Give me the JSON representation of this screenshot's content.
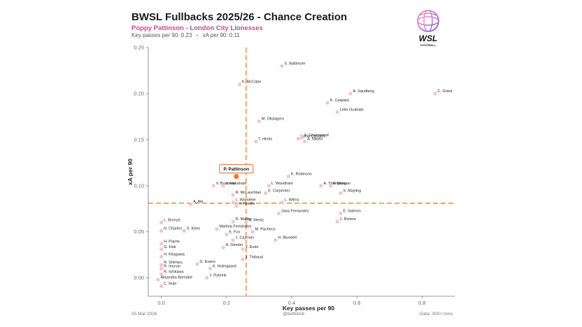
{
  "header": {
    "title": "BWSL Fullbacks 2025/26 - Chance Creation",
    "subtitle": "Poppy Pattinson - London City Lionesses",
    "kp_label": "Key passes per 90: 0.23",
    "xa_label": "xA per 90: 0.11",
    "separator": "•"
  },
  "logo": {
    "text": "WSL",
    "subtext": "FOOTBALL"
  },
  "footer": {
    "date": "05 Mar 2026",
    "handle": "@bethlimb",
    "note": "Data: 300+ mins"
  },
  "colors": {
    "accent": "#f07a2a",
    "point": "#f2c4d2",
    "highlight_border": "#e8651a",
    "text": "#222222",
    "axis": "#666666"
  },
  "chart_data": {
    "type": "scatter",
    "xlabel": "Key passes per 90",
    "ylabel": "xA per 90",
    "xlim": [
      -0.04,
      0.9
    ],
    "ylim": [
      -0.02,
      0.25
    ],
    "xticks": [
      0.0,
      0.2,
      0.4,
      0.6,
      0.8
    ],
    "yticks": [
      0.0,
      0.05,
      0.1,
      0.15,
      0.2,
      0.25
    ],
    "xtick_labels": [
      "0.0",
      "0.2",
      "0.4",
      "0.6",
      "0.8"
    ],
    "ytick_labels": [
      "0.00",
      "0.05",
      "0.10",
      "0.15",
      "0.20",
      "0.25"
    ],
    "mean_x": 0.26,
    "mean_y": 0.081,
    "highlight": {
      "name": "P. Pattinson",
      "x": 0.23,
      "y": 0.11
    },
    "points": [
      {
        "name": "S. Baltimore",
        "x": 0.37,
        "y": 0.23
      },
      {
        "name": "K. McCabe",
        "x": 0.24,
        "y": 0.21
      },
      {
        "name": "A. Sandberg",
        "x": 0.58,
        "y": 0.2
      },
      {
        "name": "C. Grant",
        "x": 0.84,
        "y": 0.2
      },
      {
        "name": "K. Casparij",
        "x": 0.51,
        "y": 0.19
      },
      {
        "name": "Leila Ouahabi",
        "x": 0.54,
        "y": 0.18
      },
      {
        "name": "M. Olislagers",
        "x": 0.3,
        "y": 0.17
      },
      {
        "name": "Lucia Corrales",
        "x": 0.42,
        "y": 0.151
      },
      {
        "name": "A. Greenwood",
        "x": 0.43,
        "y": 0.152
      },
      {
        "name": "A. Nildén",
        "x": 0.44,
        "y": 0.148
      },
      {
        "name": "T. Hinds",
        "x": 0.29,
        "y": 0.148
      },
      {
        "name": "K. Robinson",
        "x": 0.39,
        "y": 0.11
      },
      {
        "name": "V. Buurman",
        "x": 0.16,
        "y": 0.1
      },
      {
        "name": "V. Hanshaw",
        "x": 0.19,
        "y": 0.1
      },
      {
        "name": "L. Woodham",
        "x": 0.33,
        "y": 0.1
      },
      {
        "name": "A. Thompson",
        "x": 0.49,
        "y": 0.1
      },
      {
        "name": "F. Morgan",
        "x": 0.52,
        "y": 0.1
      },
      {
        "name": "S. Mayling",
        "x": 0.55,
        "y": 0.092
      },
      {
        "name": "R. McLauchlan",
        "x": 0.22,
        "y": 0.09
      },
      {
        "name": "E. Carpenter",
        "x": 0.32,
        "y": 0.092
      },
      {
        "name": "L. Wandeler",
        "x": 0.22,
        "y": 0.082
      },
      {
        "name": "L. Wilms",
        "x": 0.37,
        "y": 0.082
      },
      {
        "name": "A. Ale",
        "x": 0.09,
        "y": 0.08
      },
      {
        "name": "A. Neville",
        "x": 0.23,
        "y": 0.078
      },
      {
        "name": "Jana Fernandez",
        "x": 0.36,
        "y": 0.07
      },
      {
        "name": "E. Salmon",
        "x": 0.55,
        "y": 0.07
      },
      {
        "name": "R. Maltby",
        "x": 0.22,
        "y": 0.061
      },
      {
        "name": "N. Mentz",
        "x": 0.26,
        "y": 0.06
      },
      {
        "name": "J. Riviere",
        "x": 0.54,
        "y": 0.061
      },
      {
        "name": "L. Bronze",
        "x": 0.0,
        "y": 0.06
      },
      {
        "name": "N. Charles",
        "x": 0.0,
        "y": 0.051
      },
      {
        "name": "S. Kees",
        "x": 0.07,
        "y": 0.051
      },
      {
        "name": "Martina Fernández",
        "x": 0.17,
        "y": 0.053
      },
      {
        "name": "M. Pacheco",
        "x": 0.28,
        "y": 0.05
      },
      {
        "name": "E. Fox",
        "x": 0.2,
        "y": 0.047
      },
      {
        "name": "H. Blundell",
        "x": 0.35,
        "y": 0.041
      },
      {
        "name": "J. Cayman",
        "x": 0.22,
        "y": 0.041
      },
      {
        "name": "H. Payne",
        "x": 0.0,
        "y": 0.037
      },
      {
        "name": "A. Denton",
        "x": 0.19,
        "y": 0.033
      },
      {
        "name": "G. Fisk",
        "x": 0.0,
        "y": 0.031
      },
      {
        "name": "Y. Endo",
        "x": 0.25,
        "y": 0.031
      },
      {
        "name": "H. Kitagawa",
        "x": 0.0,
        "y": 0.023
      },
      {
        "name": "J. Thibaud",
        "x": 0.25,
        "y": 0.02
      },
      {
        "name": "R. Shimizu",
        "x": 0.0,
        "y": 0.014
      },
      {
        "name": "G. Evans",
        "x": 0.11,
        "y": 0.015
      },
      {
        "name": "R. Imuran",
        "x": 0.0,
        "y": 0.01
      },
      {
        "name": "K. Holmgaard",
        "x": 0.15,
        "y": 0.01
      },
      {
        "name": "R. Ishikawa",
        "x": 0.0,
        "y": 0.004
      },
      {
        "name": "J. Rybrink",
        "x": 0.14,
        "y": 0.0
      },
      {
        "name": "Alejandra Bernabé",
        "x": -0.01,
        "y": -0.002
      },
      {
        "name": "C. Rule",
        "x": 0.0,
        "y": -0.009
      }
    ]
  }
}
